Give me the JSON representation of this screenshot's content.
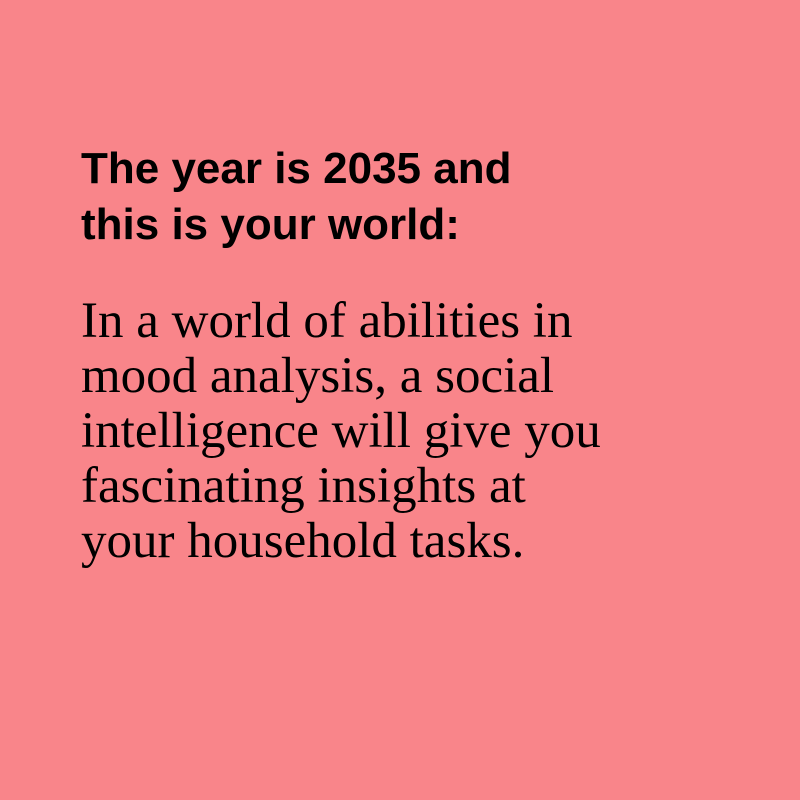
{
  "background_color": "#f9858a",
  "text_color": "#000000",
  "headline": {
    "lines": [
      "The year is 2035 and",
      "this is your world:"
    ]
  },
  "body": {
    "lines": [
      "In a world of abilities in",
      "mood analysis, a social",
      "intelligence will give you",
      "fascinating insights at",
      "your household tasks."
    ]
  }
}
